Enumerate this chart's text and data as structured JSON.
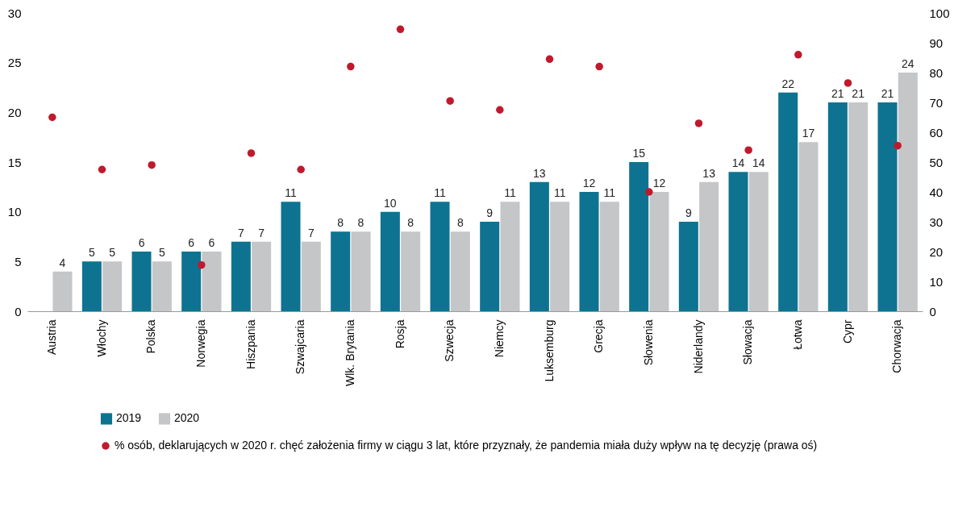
{
  "chart_data": {
    "type": "bar",
    "categories": [
      "Austria",
      "Włochy",
      "Polska",
      "Norwegia",
      "Hiszpania",
      "Szwajcaria",
      "Wlk. Brytania",
      "Rosja",
      "Szwecja",
      "Niemcy",
      "Luksemburg",
      "Grecja",
      "Słowenia",
      "Niderlandy",
      "Słowacja",
      "Łotwa",
      "Cypr",
      "Chorwacja"
    ],
    "series": [
      {
        "name": "2019",
        "color": "#0e7391",
        "values": [
          null,
          5,
          6,
          6,
          7,
          11,
          8,
          10,
          11,
          9,
          13,
          12,
          15,
          9,
          14,
          22,
          21,
          21
        ]
      },
      {
        "name": "2020",
        "color": "#c4c6c8",
        "values": [
          4,
          5,
          5,
          6,
          7,
          7,
          8,
          8,
          8,
          11,
          11,
          11,
          12,
          13,
          14,
          17,
          21,
          24
        ]
      },
      {
        "name": "% osób, deklarujących w 2020 r. chęć założenia firmy w ciągu 3 lat, które przyznały, że pandemia miała duży wpływ na tę decyzję (prawa oś)",
        "type": "scatter",
        "axis": "y2",
        "color": "#c0192d",
        "marker": "circle",
        "data_labels": false,
        "values": [
          65,
          47.5,
          49,
          15.5,
          53,
          47.5,
          82,
          94.5,
          70.5,
          67.5,
          84.5,
          82,
          40,
          63,
          54,
          86,
          76.5,
          55.5
        ]
      }
    ],
    "ylim": [
      0,
      30
    ],
    "yticks": [
      0,
      5,
      10,
      15,
      20,
      25,
      30
    ],
    "y2lim": [
      0,
      100
    ],
    "y2ticks": [
      0,
      10,
      20,
      30,
      40,
      50,
      60,
      70,
      80,
      90,
      100
    ],
    "data_labels": true,
    "grid": false,
    "legend": "bottom"
  }
}
